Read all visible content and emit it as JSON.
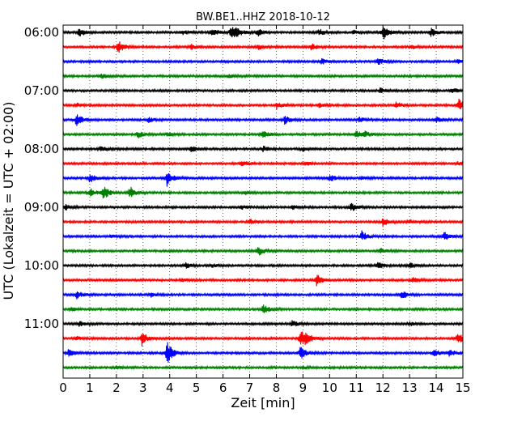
{
  "chart_data": {
    "type": "line",
    "title": "BW.BE1..HHZ 2018-10-12",
    "xlabel": "Zeit  [min]",
    "ylabel": "UTC (Lokalzeit = UTC + 02:00)",
    "xlim": [
      0,
      15
    ],
    "x_ticks": [
      "0",
      "1",
      "2",
      "3",
      "4",
      "5",
      "6",
      "7",
      "8",
      "9",
      "10",
      "11",
      "12",
      "13",
      "14",
      "15"
    ],
    "y_tick_labels": [
      "06:00",
      "07:00",
      "08:00",
      "09:00",
      "10:00",
      "11:00"
    ],
    "row_interval_minutes": 15,
    "grid": "vertical dotted",
    "colors": [
      "#000000",
      "#ff0000",
      "#0000ff",
      "#008000"
    ],
    "traces": [
      {
        "start": "06:00",
        "events": [
          [
            0.6,
            0.5
          ],
          [
            5.6,
            0.5
          ],
          [
            6.3,
            0.7
          ],
          [
            6.5,
            0.4
          ],
          [
            7.3,
            0.4
          ],
          [
            9.6,
            0.4
          ],
          [
            12.0,
            0.9
          ],
          [
            13.8,
            0.5
          ],
          [
            4.5,
            0.2
          ],
          [
            10.9,
            0.2
          ]
        ]
      },
      {
        "start": "06:15",
        "events": [
          [
            2.05,
            0.8
          ],
          [
            4.8,
            0.3
          ],
          [
            7.3,
            0.3
          ],
          [
            9.3,
            0.4
          ],
          [
            13.1,
            0.2
          ]
        ]
      },
      {
        "start": "06:30",
        "events": [
          [
            9.7,
            0.3
          ],
          [
            11.8,
            0.4
          ],
          [
            14.8,
            0.2
          ]
        ]
      },
      {
        "start": "06:45",
        "events": [
          [
            1.4,
            0.3
          ],
          [
            6.2,
            0.2
          ]
        ]
      },
      {
        "start": "07:00",
        "events": [
          [
            11.9,
            0.3
          ],
          [
            14.6,
            0.3
          ]
        ]
      },
      {
        "start": "07:15",
        "events": [
          [
            8.0,
            0.4
          ],
          [
            9.6,
            0.2
          ],
          [
            12.5,
            0.4
          ],
          [
            14.85,
            0.7
          ],
          [
            0.5,
            0.2
          ]
        ]
      },
      {
        "start": "07:30",
        "events": [
          [
            0.5,
            0.8
          ],
          [
            3.2,
            0.3
          ],
          [
            8.3,
            0.5
          ],
          [
            11.1,
            0.3
          ],
          [
            14.0,
            0.3
          ]
        ]
      },
      {
        "start": "07:45",
        "events": [
          [
            2.8,
            0.4
          ],
          [
            3.9,
            0.3
          ],
          [
            7.5,
            0.4
          ],
          [
            11.0,
            0.4
          ],
          [
            11.3,
            0.3
          ]
        ]
      },
      {
        "start": "08:00",
        "events": [
          [
            1.4,
            0.4
          ],
          [
            4.8,
            0.3
          ],
          [
            7.5,
            0.3
          ],
          [
            9.0,
            0.2
          ]
        ]
      },
      {
        "start": "08:15",
        "events": [
          [
            6.7,
            0.4
          ],
          [
            9.1,
            0.2
          ],
          [
            14.8,
            0.2
          ]
        ]
      },
      {
        "start": "08:30",
        "events": [
          [
            1.0,
            0.5
          ],
          [
            3.9,
            0.9
          ],
          [
            10.0,
            0.4
          ],
          [
            11.2,
            0.2
          ]
        ]
      },
      {
        "start": "08:45",
        "events": [
          [
            1.0,
            0.5
          ],
          [
            1.5,
            0.8
          ],
          [
            2.5,
            0.7
          ],
          [
            6.8,
            0.2
          ]
        ]
      },
      {
        "start": "09:00",
        "events": [
          [
            0.1,
            0.3
          ],
          [
            10.8,
            0.5
          ],
          [
            6.7,
            0.2
          ],
          [
            8.6,
            0.2
          ]
        ]
      },
      {
        "start": "09:15",
        "events": [
          [
            7.0,
            0.3
          ],
          [
            12.0,
            0.5
          ],
          [
            13.0,
            0.2
          ]
        ]
      },
      {
        "start": "09:30",
        "events": [
          [
            1.8,
            0.2
          ],
          [
            11.2,
            0.6
          ],
          [
            14.3,
            0.5
          ]
        ]
      },
      {
        "start": "09:45",
        "events": [
          [
            7.3,
            0.6
          ],
          [
            11.9,
            0.3
          ]
        ]
      },
      {
        "start": "10:00",
        "events": [
          [
            4.6,
            0.3
          ],
          [
            5.6,
            0.2
          ],
          [
            11.8,
            0.4
          ],
          [
            13.0,
            0.3
          ]
        ]
      },
      {
        "start": "10:15",
        "events": [
          [
            9.5,
            0.7
          ],
          [
            13.1,
            0.3
          ],
          [
            4.5,
            0.2
          ]
        ]
      },
      {
        "start": "10:30",
        "events": [
          [
            0.5,
            0.5
          ],
          [
            12.7,
            0.5
          ],
          [
            3.3,
            0.2
          ]
        ]
      },
      {
        "start": "10:45",
        "events": [
          [
            7.5,
            0.6
          ],
          [
            0.3,
            0.2
          ]
        ]
      },
      {
        "start": "11:00",
        "events": [
          [
            0.6,
            0.3
          ],
          [
            8.6,
            0.4
          ],
          [
            13.0,
            0.2
          ]
        ]
      },
      {
        "start": "11:15",
        "events": [
          [
            2.95,
            0.8
          ],
          [
            8.9,
            1.1
          ],
          [
            9.1,
            0.5
          ],
          [
            14.8,
            0.6
          ],
          [
            0.5,
            0.2
          ]
        ]
      },
      {
        "start": "11:30",
        "events": [
          [
            0.2,
            0.4
          ],
          [
            3.9,
            1.3
          ],
          [
            8.9,
            0.9
          ],
          [
            13.9,
            0.5
          ],
          [
            14.5,
            0.4
          ]
        ]
      },
      {
        "start": "11:45",
        "events": [
          [
            2.0,
            0.15
          ],
          [
            9.0,
            0.15
          ]
        ]
      }
    ]
  }
}
